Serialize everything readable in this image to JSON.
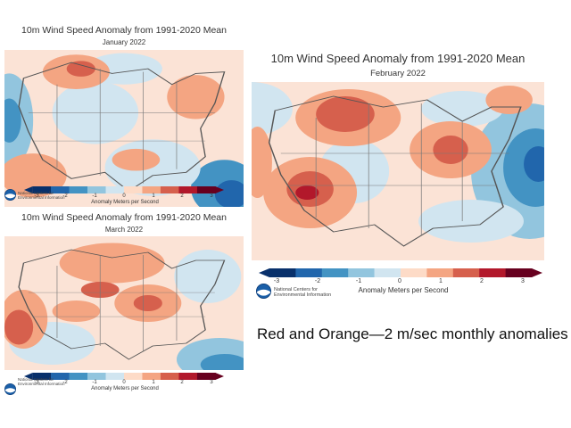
{
  "panels": {
    "jan": {
      "title": "10m Wind Speed Anomaly from 1991-2020 Mean",
      "subtitle": "January 2022",
      "colorbar_ticks": [
        "-3",
        "-2",
        "-1",
        "0",
        "1",
        "2",
        "3"
      ],
      "unit_label": "Anomaly Meters per Second",
      "org_line1": "National Centers for",
      "org_line2": "Environmental Information"
    },
    "feb": {
      "title": "10m Wind Speed Anomaly from 1991-2020 Mean",
      "subtitle": "February 2022",
      "colorbar_ticks": [
        "-3",
        "-2",
        "-1",
        "0",
        "1",
        "2",
        "3"
      ],
      "unit_label": "Anomaly Meters per Second",
      "org_line1": "National Centers for",
      "org_line2": "Environmental Information"
    },
    "mar": {
      "title": "10m Wind Speed Anomaly from 1991-2020 Mean",
      "subtitle": "March 2022",
      "colorbar_ticks": [
        "-3",
        "-2",
        "-1",
        "0",
        "1",
        "2",
        "3"
      ],
      "unit_label": "Anomaly Meters per Second",
      "org_line1": "National Centers for",
      "org_line2": "Environmental Information"
    }
  },
  "caption": "Red and Orange—2 m/sec monthly anomalies",
  "colors": {
    "scale": [
      "#08306b",
      "#2166ac",
      "#4393c3",
      "#92c5de",
      "#d1e5f0",
      "#fddbc7",
      "#f4a582",
      "#d6604d",
      "#b2182b",
      "#67001f"
    ],
    "map_base": "#fbe3d6",
    "noaa_blue": "#1a5fa8"
  }
}
